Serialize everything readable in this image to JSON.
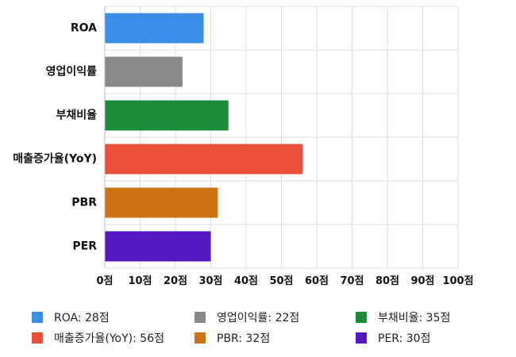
{
  "chart_data": {
    "type": "bar",
    "orientation": "horizontal",
    "categories": [
      "ROA",
      "영업이익률",
      "부채비율",
      "매출증가율(YoY)",
      "PBR",
      "PER"
    ],
    "values": [
      28,
      22,
      35,
      56,
      32,
      30
    ],
    "colors": [
      "#3b8fe8",
      "#898989",
      "#1a8c3a",
      "#ea4f3a",
      "#cd7316",
      "#5217c0"
    ],
    "xlim": [
      0,
      100
    ],
    "xticks": [
      {
        "value": 0,
        "label": "0점"
      },
      {
        "value": 10,
        "label": "10점"
      },
      {
        "value": 20,
        "label": "20점"
      },
      {
        "value": 30,
        "label": "30점"
      },
      {
        "value": 40,
        "label": "40점"
      },
      {
        "value": 50,
        "label": "50점"
      },
      {
        "value": 60,
        "label": "60점"
      },
      {
        "value": 70,
        "label": "70점"
      },
      {
        "value": 80,
        "label": "80점"
      },
      {
        "value": 90,
        "label": "90점"
      },
      {
        "value": 100,
        "label": "100점"
      }
    ],
    "grid": true,
    "legend_position": "bottom",
    "legend": [
      {
        "label": "ROA: 28점",
        "color": "#3b8fe8"
      },
      {
        "label": "영업이익률: 22점",
        "color": "#898989"
      },
      {
        "label": "부채비율: 35점",
        "color": "#1a8c3a"
      },
      {
        "label": "매출증가율(YoY): 56점",
        "color": "#ea4f3a"
      },
      {
        "label": "PBR: 32점",
        "color": "#cd7316"
      },
      {
        "label": "PER: 30점",
        "color": "#5217c0"
      }
    ]
  }
}
